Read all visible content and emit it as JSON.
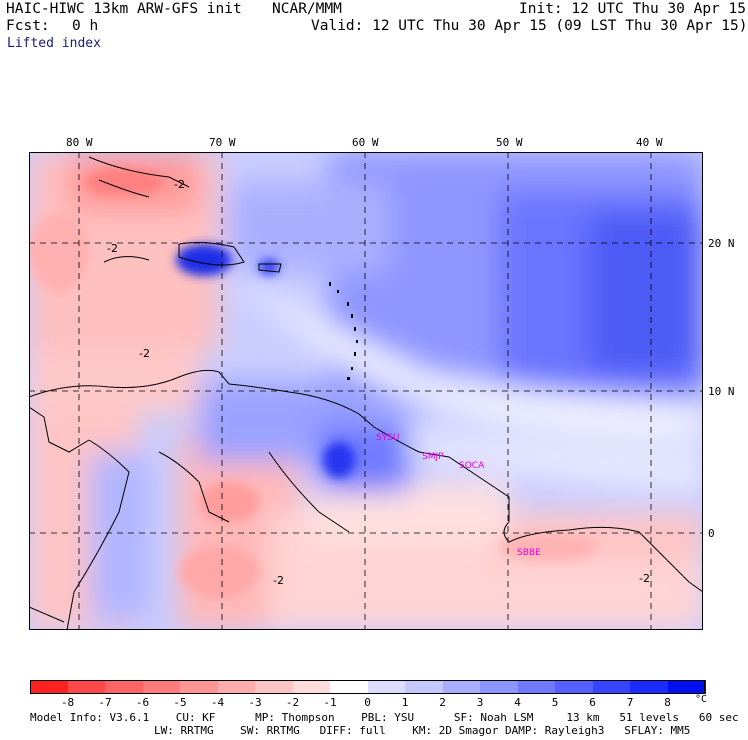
{
  "header": {
    "model": "HAIC-HIWC 13km ARW-GFS init",
    "org": "NCAR/MMM",
    "init": "Init: 12 UTC Thu 30 Apr 15",
    "fcst_label": "Fcst:",
    "fcst_value": "0 h",
    "valid": "Valid: 12 UTC Thu 30 Apr 15 (09 LST Thu 30 Apr 15)",
    "field": "Lifted index"
  },
  "map": {
    "lon_labels": [
      "80 W",
      "70 W",
      "60 W",
      "50 W",
      "40 W"
    ],
    "lat_labels": [
      "20 N",
      "10 N",
      "0"
    ],
    "stations": [
      "SYSU",
      "SMJP",
      "SOCA",
      "SBBE"
    ],
    "contour_labels": [
      "-2",
      "-2",
      "-2",
      "-2",
      "-2"
    ]
  },
  "colorbar": {
    "tick_labels": [
      "-8",
      "-7",
      "-6",
      "-5",
      "-4",
      "-3",
      "-2",
      "-1",
      "0",
      "1",
      "2",
      "3",
      "4",
      "5",
      "6",
      "7",
      "8"
    ],
    "unit": "°C",
    "colors": [
      "#ff2020",
      "#ff4848",
      "#ff6464",
      "#ff7c7c",
      "#ff9494",
      "#ffacac",
      "#ffc4c4",
      "#ffdcdc",
      "#ffffff",
      "#dcdcff",
      "#c4c8ff",
      "#a8aeff",
      "#8c94ff",
      "#707aff",
      "#5460ff",
      "#3646ff",
      "#1a2cff",
      "#0010f0"
    ]
  },
  "footer": {
    "line1": "Model Info: V3.6.1    CU: KF      MP: Thompson    PBL: YSU      SF: Noah LSM     13 km   51 levels   60 sec",
    "line2": "LW: RRTMG    SW: RRTMG   DIFF: full    KM: 2D Smagor DAMP: Rayleigh3   SFLAY: MM5"
  }
}
